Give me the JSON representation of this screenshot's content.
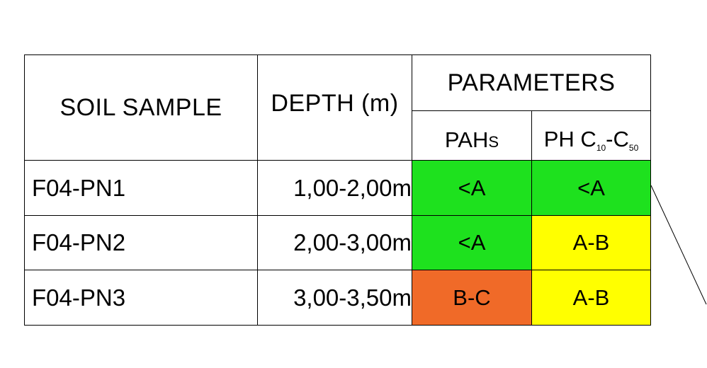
{
  "table": {
    "headers": {
      "soil_sample": "SOIL SAMPLE",
      "depth": "DEPTH (m)",
      "parameters": "PARAMETERS",
      "pahs_main": "PAH",
      "pahs_suffix": "S",
      "ph_prefix": "PH C",
      "ph_sub1": "10",
      "ph_dash": "-C",
      "ph_sub2": "50"
    },
    "rows": [
      {
        "sample": "F04-PN1",
        "depth": "1,00-2,00m",
        "pahs": "<A",
        "ph": "<A"
      },
      {
        "sample": "F04-PN2",
        "depth": "2,00-3,00m",
        "pahs": "<A",
        "ph": "A-B"
      },
      {
        "sample": "F04-PN3",
        "depth": "3,00-3,50m",
        "pahs": "B-C",
        "ph": "A-B"
      }
    ]
  },
  "colors": {
    "below_a": "#1ee11e",
    "a_b": "#ffff00",
    "b_c": "#f06a28"
  }
}
